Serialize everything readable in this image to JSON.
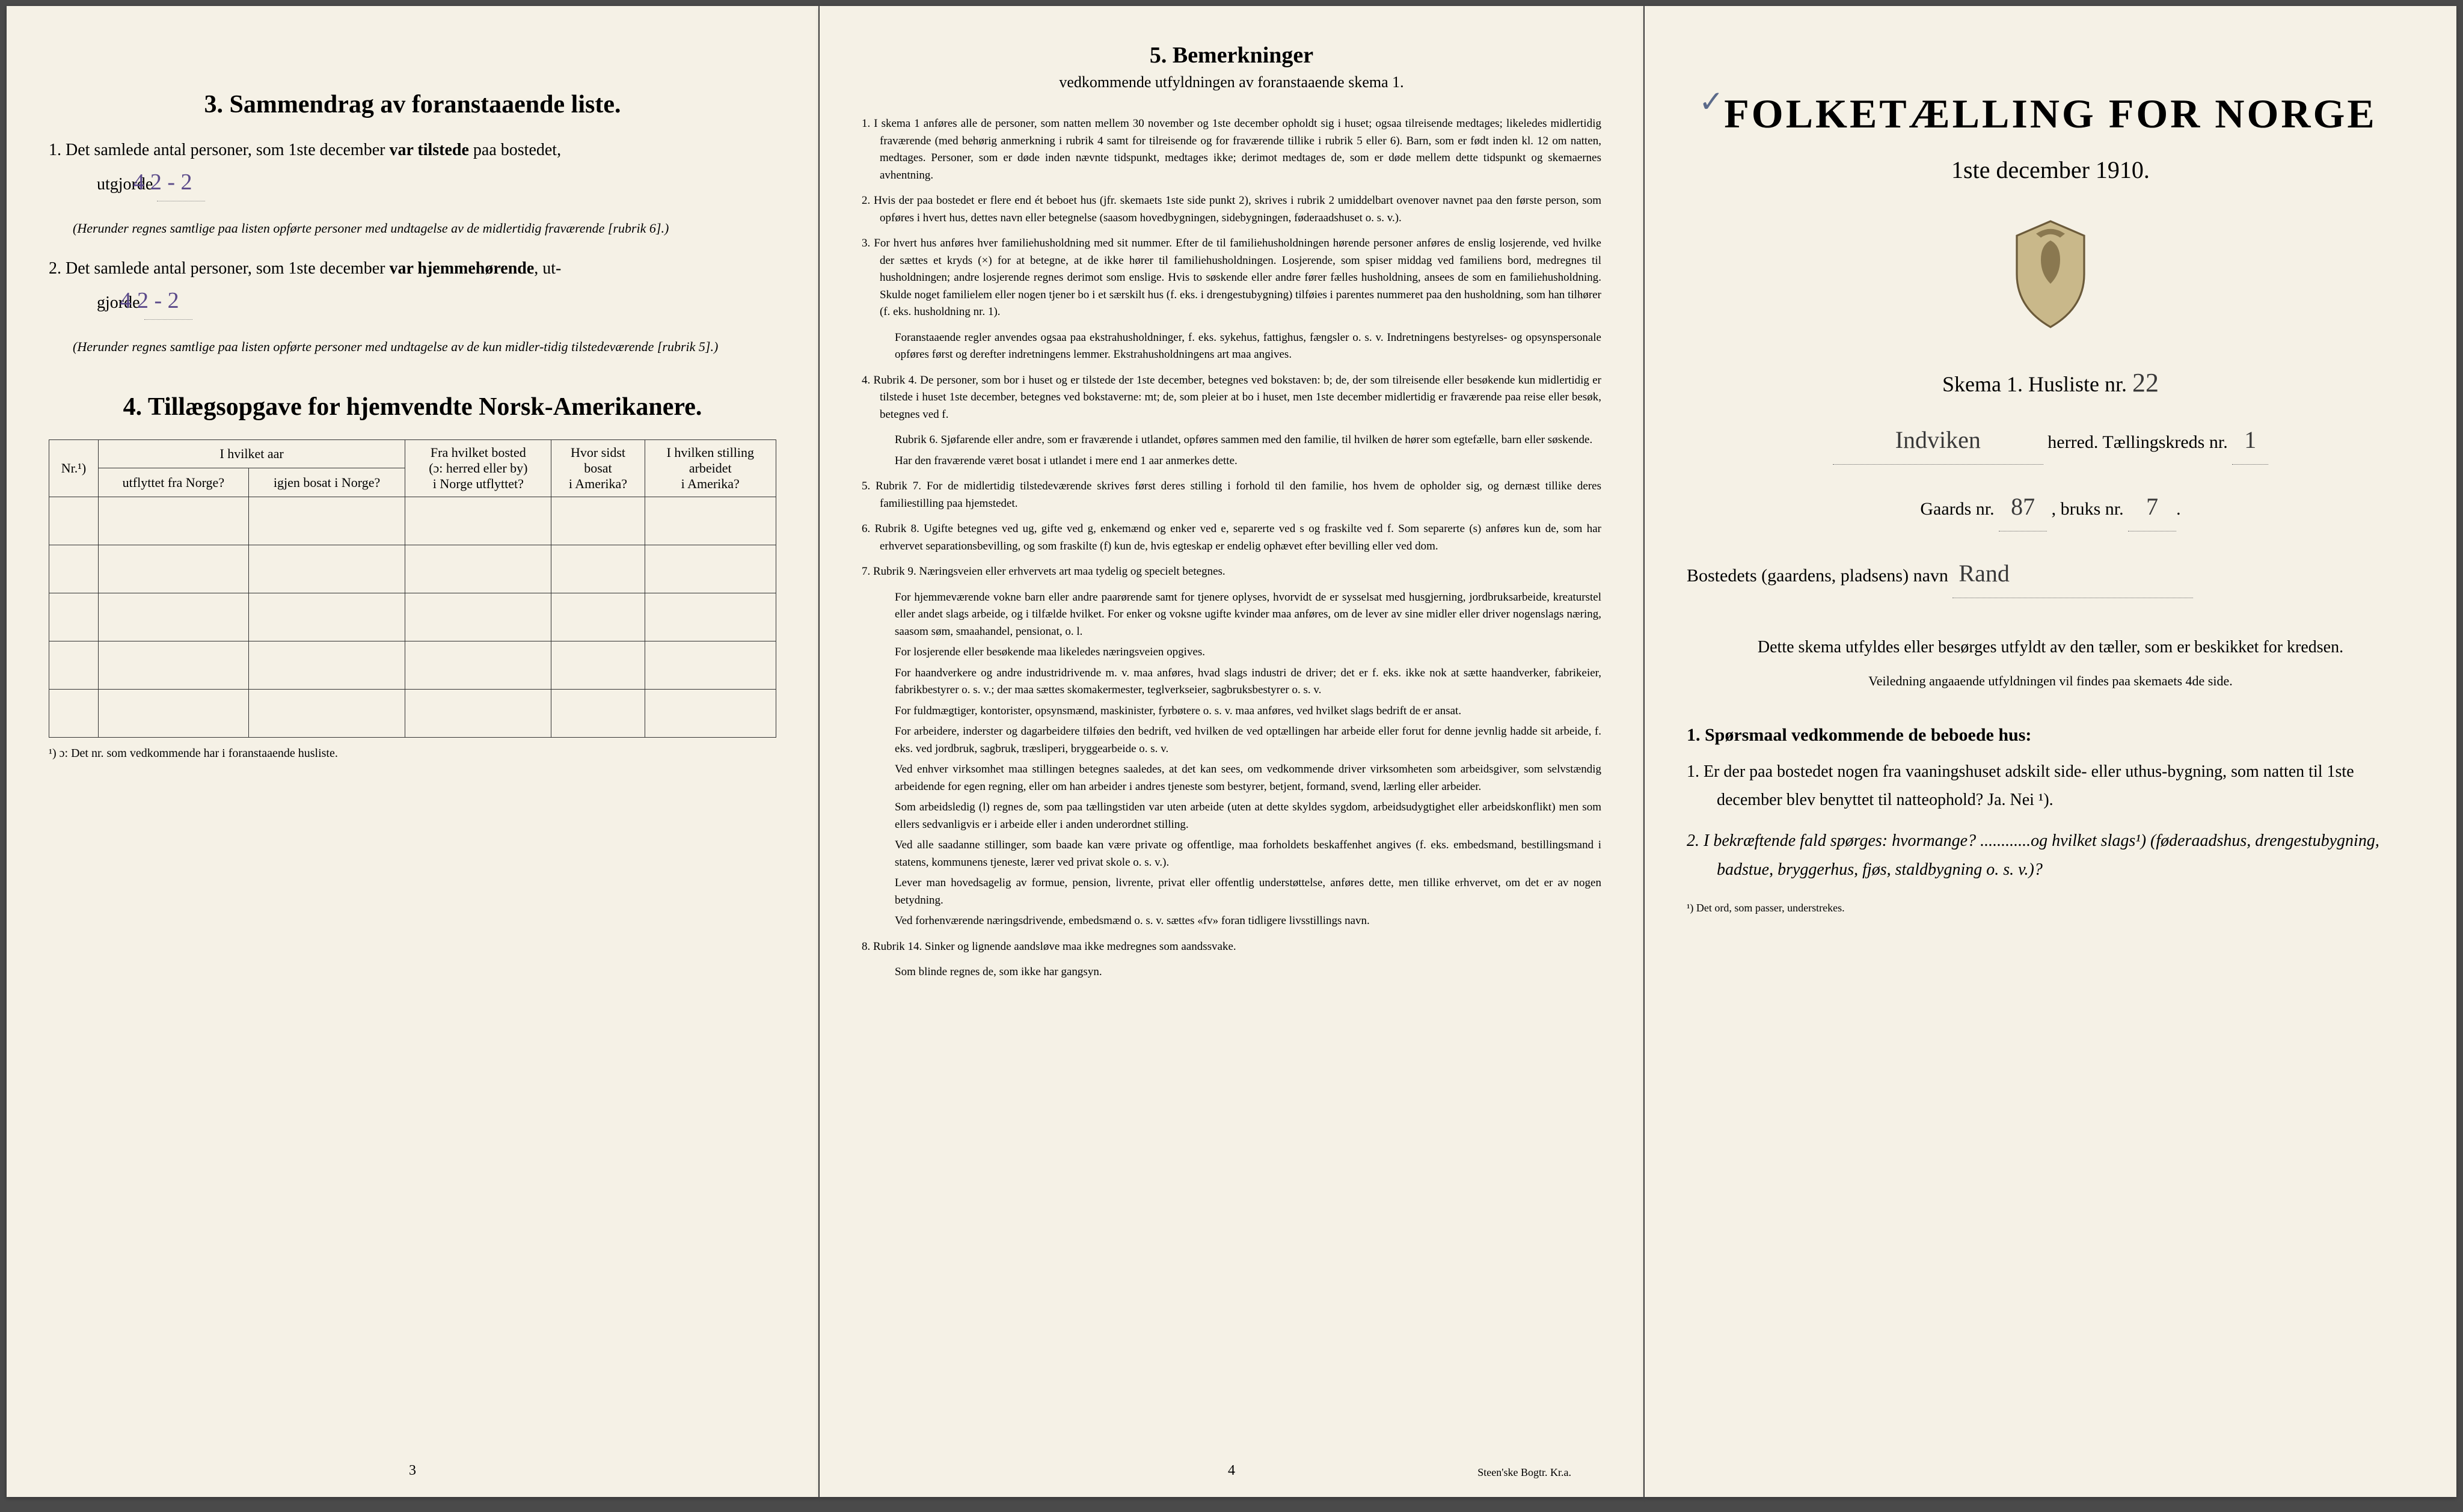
{
  "left": {
    "section3_title": "3.   Sammendrag av foranstaaende liste.",
    "item1_prefix": "1. Det samlede antal personer, som 1ste december ",
    "item1_bold": "var tilstede",
    "item1_suffix": " paa bostedet,",
    "item1_line2": "utgjorde ",
    "item1_hand": "4   2 - 2",
    "item1_note": "(Herunder regnes samtlige paa listen opførte personer med undtagelse av de midlertidig fraværende [rubrik 6].)",
    "item2_prefix": "2. Det samlede antal personer, som 1ste december ",
    "item2_bold": "var hjemmehørende",
    "item2_suffix": ", ut-",
    "item2_line2": "gjorde ",
    "item2_hand": "4   2 - 2",
    "item2_note": "(Herunder regnes samtlige paa listen opførte personer med undtagelse av de kun midler-tidig tilstedeværende [rubrik 5].)",
    "section4_title": "4.   Tillægsopgave for hjemvendte Norsk-Amerikanere.",
    "th_nr": "Nr.¹)",
    "th_col1a": "I hvilket aar",
    "th_col1b": "utflyttet fra Norge?",
    "th_col1c": "igjen bosat i Norge?",
    "th_col2a": "Fra hvilket bosted",
    "th_col2b": "(ɔ: herred eller by)",
    "th_col2c": "i Norge utflyttet?",
    "th_col3a": "Hvor sidst",
    "th_col3b": "bosat",
    "th_col3c": "i Amerika?",
    "th_col4a": "I hvilken stilling",
    "th_col4b": "arbeidet",
    "th_col4c": "i Amerika?",
    "footnote": "¹) ɔ: Det nr. som vedkommende har i foranstaaende husliste.",
    "page_num": "3"
  },
  "middle": {
    "title": "5.   Bemerkninger",
    "subtitle": "vedkommende utfyldningen av foranstaaende skema 1.",
    "items": [
      "1. I skema 1 anføres alle de personer, som natten mellem 30 november og 1ste december opholdt sig i huset; ogsaa tilreisende medtages; likeledes midlertidig fraværende (med behørig anmerkning i rubrik 4 samt for tilreisende og for fraværende tillike i rubrik 5 eller 6). Barn, som er født inden kl. 12 om natten, medtages. Personer, som er døde inden nævnte tidspunkt, medtages ikke; derimot medtages de, som er døde mellem dette tidspunkt og skemaernes avhentning.",
      "2. Hvis der paa bostedet er flere end ét beboet hus (jfr. skemaets 1ste side punkt 2), skrives i rubrik 2 umiddelbart ovenover navnet paa den første person, som opføres i hvert hus, dettes navn eller betegnelse (saasom hovedbygningen, sidebygningen, føderaadshuset o. s. v.).",
      "3. For hvert hus anføres hver familiehusholdning med sit nummer. Efter de til familiehusholdningen hørende personer anføres de enslig losjerende, ved hvilke der sættes et kryds (×) for at betegne, at de ikke hører til familiehusholdningen. Losjerende, som spiser middag ved familiens bord, medregnes til husholdningen; andre losjerende regnes derimot som enslige. Hvis to søskende eller andre fører fælles husholdning, ansees de som en familiehusholdning. Skulde noget familielem eller nogen tjener bo i et særskilt hus (f. eks. i drengestubygning) tilføies i parentes nummeret paa den husholdning, som han tilhører (f. eks. husholdning nr. 1).",
      "Foranstaaende regler anvendes ogsaa paa ekstrahusholdninger, f. eks. sykehus, fattighus, fængsler o. s. v. Indretningens bestyrelses- og opsynspersonale opføres først og derefter indretningens lemmer. Ekstrahusholdningens art maa angives.",
      "4. Rubrik 4. De personer, som bor i huset og er tilstede der 1ste december, betegnes ved bokstaven: b; de, der som tilreisende eller besøkende kun midlertidig er tilstede i huset 1ste december, betegnes ved bokstaverne: mt; de, som pleier at bo i huset, men 1ste december midlertidig er fraværende paa reise eller besøk, betegnes ved f.",
      "Rubrik 6. Sjøfarende eller andre, som er fraværende i utlandet, opføres sammen med den familie, til hvilken de hører som egtefælle, barn eller søskende.",
      "Har den fraværende været bosat i utlandet i mere end 1 aar anmerkes dette.",
      "5. Rubrik 7. For de midlertidig tilstedeværende skrives først deres stilling i forhold til den familie, hos hvem de opholder sig, og dernæst tillike deres familiestilling paa hjemstedet.",
      "6. Rubrik 8. Ugifte betegnes ved ug, gifte ved g, enkemænd og enker ved e, separerte ved s og fraskilte ved f. Som separerte (s) anføres kun de, som har erhvervet separationsbevilling, og som fraskilte (f) kun de, hvis egteskap er endelig ophævet efter bevilling eller ved dom.",
      "7. Rubrik 9. Næringsveien eller erhvervets art maa tydelig og specielt betegnes.",
      "For hjemmeværende vokne barn eller andre paarørende samt for tjenere oplyses, hvorvidt de er sysselsat med husgjerning, jordbruksarbeide, kreaturstel eller andet slags arbeide, og i tilfælde hvilket. For enker og voksne ugifte kvinder maa anføres, om de lever av sine midler eller driver nogenslags næring, saasom søm, smaahandel, pensionat, o. l.",
      "For losjerende eller besøkende maa likeledes næringsveien opgives.",
      "For haandverkere og andre industridrivende m. v. maa anføres, hvad slags industri de driver; det er f. eks. ikke nok at sætte haandverker, fabrikeier, fabrikbestyrer o. s. v.; der maa sættes skomakermester, teglverkseier, sagbruksbestyrer o. s. v.",
      "For fuldmægtiger, kontorister, opsynsmænd, maskinister, fyrbøtere o. s. v. maa anføres, ved hvilket slags bedrift de er ansat.",
      "For arbeidere, inderster og dagarbeidere tilføies den bedrift, ved hvilken de ved optællingen har arbeide eller forut for denne jevnlig hadde sit arbeide, f. eks. ved jordbruk, sagbruk, træsliperi, bryggearbeide o. s. v.",
      "Ved enhver virksomhet maa stillingen betegnes saaledes, at det kan sees, om vedkommende driver virksomheten som arbeidsgiver, som selvstændig arbeidende for egen regning, eller om han arbeider i andres tjeneste som bestyrer, betjent, formand, svend, lærling eller arbeider.",
      "Som arbeidsledig (l) regnes de, som paa tællingstiden var uten arbeide (uten at dette skyldes sygdom, arbeidsudygtighet eller arbeidskonflikt) men som ellers sedvanligvis er i arbeide eller i anden underordnet stilling.",
      "Ved alle saadanne stillinger, som baade kan være private og offentlige, maa forholdets beskaffenhet angives (f. eks. embedsmand, bestillingsmand i statens, kommunens tjeneste, lærer ved privat skole o. s. v.).",
      "Lever man hovedsagelig av formue, pension, livrente, privat eller offentlig understøttelse, anføres dette, men tillike erhvervet, om det er av nogen betydning.",
      "Ved forhenværende næringsdrivende, embedsmænd o. s. v. sættes «fv» foran tidligere livsstillings navn.",
      "8. Rubrik 14. Sinker og lignende aandsløve maa ikke medregnes som aandssvake.",
      "Som blinde regnes de, som ikke har gangsyn."
    ],
    "page_num": "4",
    "printer": "Steen'ske Bogtr.  Kr.a."
  },
  "right": {
    "checkmark": "✓",
    "main_title": "FOLKETÆLLING FOR NORGE",
    "date": "1ste december 1910.",
    "schema_label": "Skema 1.   Husliste nr.",
    "schema_num": "22",
    "herred_hand": "Indviken",
    "herred_label": "herred.   Tællingskreds nr.",
    "kreds_num": "1",
    "gaards_label": "Gaards nr.",
    "gaards_num": "87",
    "bruks_label": ",  bruks nr.",
    "bruks_num": "7",
    "bosted_label": "Bostedets (gaardens, pladsens) navn",
    "bosted_hand": "Rand",
    "instruction": "Dette skema utfyldes eller besørges utfyldt av den tæller, som er beskikket for kredsen.",
    "instruction_small": "Veiledning angaaende utfyldningen vil findes paa skemaets 4de side.",
    "q_heading": "1.  Spørsmaal vedkommende de beboede hus:",
    "q1": "1. Er der paa bostedet nogen fra vaaningshuset adskilt side- eller uthus-bygning, som natten til 1ste december blev benyttet til natteophold?     Ja.   Nei ¹).",
    "q2": "2. I bekræftende fald spørges: hvormange? ............og hvilket slags¹) (føderaadshus, drengestubygning, badstue, bryggerhus, fjøs, staldbygning o. s. v.)?",
    "tiny_footnote": "¹) Det ord, som passer, understrekes."
  }
}
